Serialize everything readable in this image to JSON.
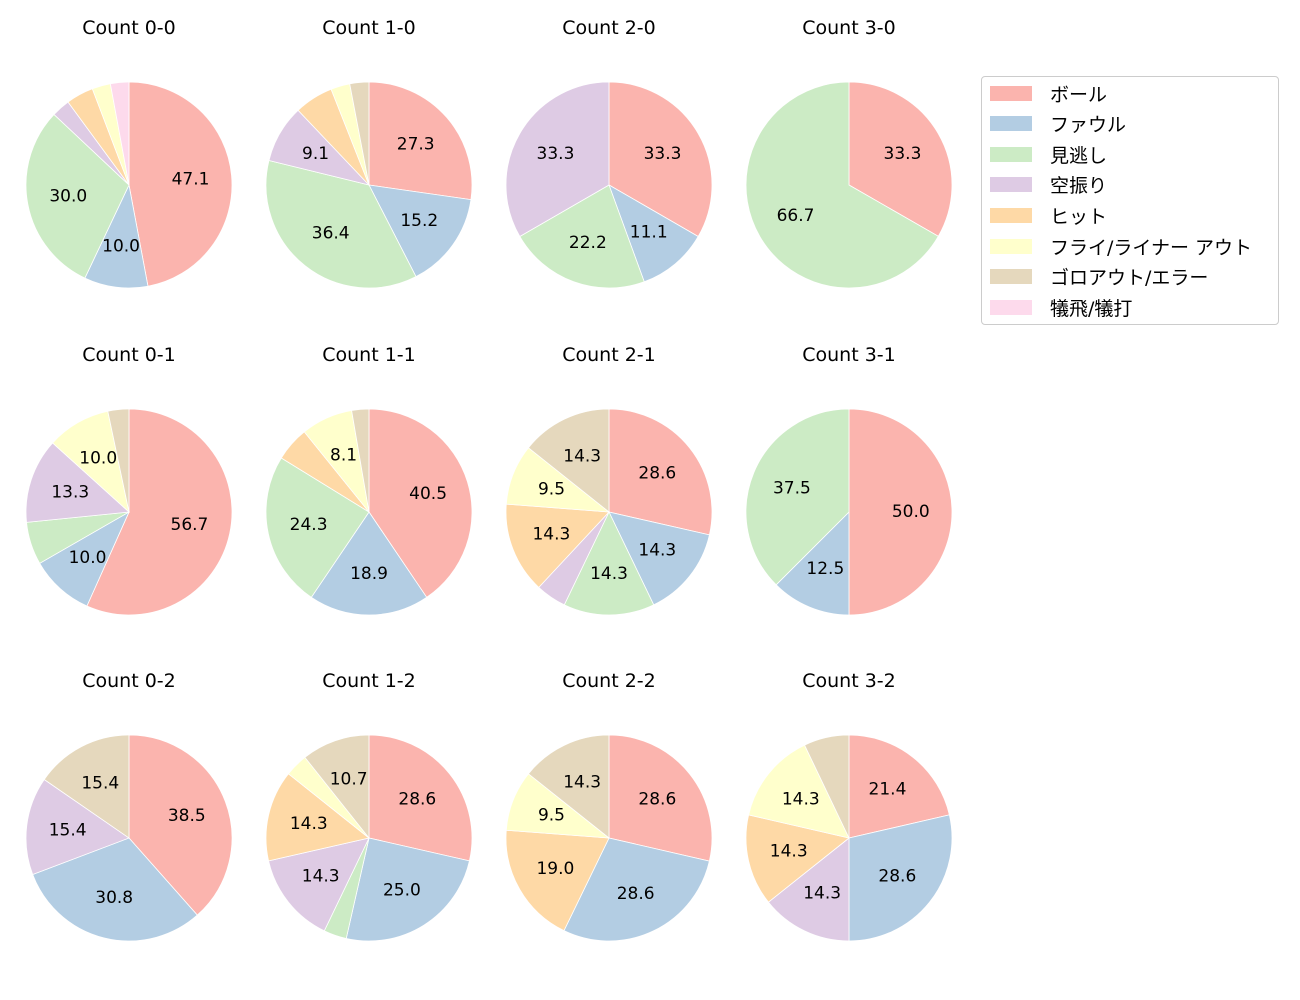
{
  "chart_data": {
    "type": "pie",
    "title": "",
    "legend": {
      "position": "upper right (outside)",
      "entries": [
        "ボール",
        "ファウル",
        "見逃し",
        "空振り",
        "ヒット",
        "フライ/ライナー アウト",
        "ゴロアウト/エラー",
        "犠飛/犠打"
      ]
    },
    "colors": [
      "#fbb4ae",
      "#b3cde3",
      "#ccebc5",
      "#decbe4",
      "#fed9a6",
      "#ffffcc",
      "#e5d8bd",
      "#fddaec"
    ],
    "start_angle": 90,
    "direction": "clockwise",
    "label_threshold_note": "labels shown only for slices >= ~8%",
    "panels": [
      {
        "title": "Count 0-0",
        "values": [
          47.1,
          10.0,
          30.0,
          2.9,
          4.3,
          2.9,
          0.0,
          2.9
        ],
        "labels": [
          "47.1",
          "10.0",
          "30.0",
          "",
          "",
          "",
          "",
          ""
        ]
      },
      {
        "title": "Count 1-0",
        "values": [
          27.3,
          15.2,
          36.4,
          9.1,
          6.1,
          3.0,
          3.0,
          0.0
        ],
        "labels": [
          "27.3",
          "15.2",
          "36.4",
          "9.1",
          "",
          "",
          "",
          ""
        ]
      },
      {
        "title": "Count 2-0",
        "values": [
          33.3,
          11.1,
          22.2,
          33.3,
          0.0,
          0.0,
          0.0,
          0.0
        ],
        "labels": [
          "33.3",
          "11.1",
          "22.2",
          "33.3",
          "",
          "",
          "",
          ""
        ]
      },
      {
        "title": "Count 3-0",
        "values": [
          33.3,
          0.0,
          66.7,
          0.0,
          0.0,
          0.0,
          0.0,
          0.0
        ],
        "labels": [
          "33.3",
          "",
          "66.7",
          "",
          "",
          "",
          "",
          ""
        ]
      },
      {
        "title": "Count 0-1",
        "values": [
          56.7,
          10.0,
          6.7,
          13.3,
          0.0,
          10.0,
          3.3,
          0.0
        ],
        "labels": [
          "56.7",
          "10.0",
          "",
          "13.3",
          "",
          "10.0",
          "",
          ""
        ]
      },
      {
        "title": "Count 1-1",
        "values": [
          40.5,
          18.9,
          24.3,
          0.0,
          5.4,
          8.1,
          2.7,
          0.0
        ],
        "labels": [
          "40.5",
          "18.9",
          "24.3",
          "",
          "",
          "8.1",
          "",
          ""
        ]
      },
      {
        "title": "Count 2-1",
        "values": [
          28.6,
          14.3,
          14.3,
          4.8,
          14.3,
          9.5,
          14.3,
          0.0
        ],
        "labels": [
          "28.6",
          "14.3",
          "14.3",
          "",
          "14.3",
          "9.5",
          "14.3",
          ""
        ]
      },
      {
        "title": "Count 3-1",
        "values": [
          50.0,
          12.5,
          37.5,
          0.0,
          0.0,
          0.0,
          0.0,
          0.0
        ],
        "labels": [
          "50.0",
          "12.5",
          "37.5",
          "",
          "",
          "",
          "",
          ""
        ]
      },
      {
        "title": "Count 0-2",
        "values": [
          38.5,
          30.8,
          0.0,
          15.4,
          0.0,
          0.0,
          15.4,
          0.0
        ],
        "labels": [
          "38.5",
          "30.8",
          "",
          "15.4",
          "",
          "",
          "15.4",
          ""
        ]
      },
      {
        "title": "Count 1-2",
        "values": [
          28.6,
          25.0,
          3.6,
          14.3,
          14.3,
          3.6,
          10.7,
          0.0
        ],
        "labels": [
          "28.6",
          "25.0",
          "",
          "14.3",
          "14.3",
          "",
          "10.7",
          ""
        ]
      },
      {
        "title": "Count 2-2",
        "values": [
          28.6,
          28.6,
          0.0,
          0.0,
          19.0,
          9.5,
          14.3,
          0.0
        ],
        "labels": [
          "28.6",
          "28.6",
          "",
          "",
          "19.0",
          "9.5",
          "14.3",
          ""
        ]
      },
      {
        "title": "Count 3-2",
        "values": [
          21.4,
          28.6,
          0.0,
          14.3,
          14.3,
          14.3,
          7.1,
          0.0
        ],
        "labels": [
          "21.4",
          "28.6",
          "",
          "14.3",
          "14.3",
          "14.3",
          "",
          ""
        ]
      }
    ]
  }
}
